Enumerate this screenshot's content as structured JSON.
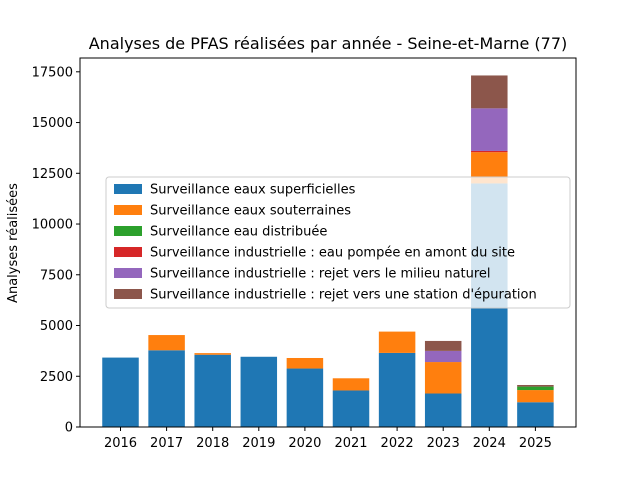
{
  "chart_data": {
    "type": "bar",
    "stacked": true,
    "title": "Analyses de PFAS réalisées par année - Seine-et-Marne (77)",
    "xlabel": "",
    "ylabel": "Analyses réalisées",
    "ylim": [
      0,
      17500
    ],
    "yticks": [
      0,
      2500,
      5000,
      7500,
      10000,
      12500,
      15000,
      17500
    ],
    "ytick_labels": [
      "0",
      "2500",
      "5000",
      "7500",
      "10000",
      "12500",
      "15000",
      "17500"
    ],
    "categories": [
      "2016",
      "2017",
      "2018",
      "2019",
      "2020",
      "2021",
      "2022",
      "2023",
      "2024",
      "2025"
    ],
    "legend_position": "center-left",
    "series": [
      {
        "name": "Surveillance eaux superficielles",
        "color": "#1f77b4",
        "values": [
          3420,
          3780,
          3560,
          3460,
          2880,
          1800,
          3650,
          1650,
          12000,
          1220
        ]
      },
      {
        "name": "Surveillance eaux souterraines",
        "color": "#ff7f0e",
        "values": [
          0,
          750,
          80,
          0,
          520,
          600,
          1050,
          1550,
          1540,
          600
        ]
      },
      {
        "name": "Surveillance eau distribuée",
        "color": "#2ca02c",
        "values": [
          0,
          0,
          0,
          0,
          0,
          0,
          0,
          0,
          0,
          170
        ]
      },
      {
        "name": "Surveillance industrielle : eau pompée en amont du site",
        "color": "#d62728",
        "values": [
          0,
          0,
          0,
          0,
          0,
          0,
          0,
          0,
          60,
          0
        ]
      },
      {
        "name": "Surveillance industrielle : rejet vers le milieu naturel",
        "color": "#9467bd",
        "values": [
          0,
          0,
          0,
          0,
          0,
          0,
          0,
          550,
          2100,
          0
        ]
      },
      {
        "name": "Surveillance industrielle : rejet vers une station d'épuration",
        "color": "#8c564b",
        "values": [
          0,
          0,
          0,
          0,
          0,
          0,
          0,
          490,
          1620,
          80
        ]
      }
    ]
  }
}
